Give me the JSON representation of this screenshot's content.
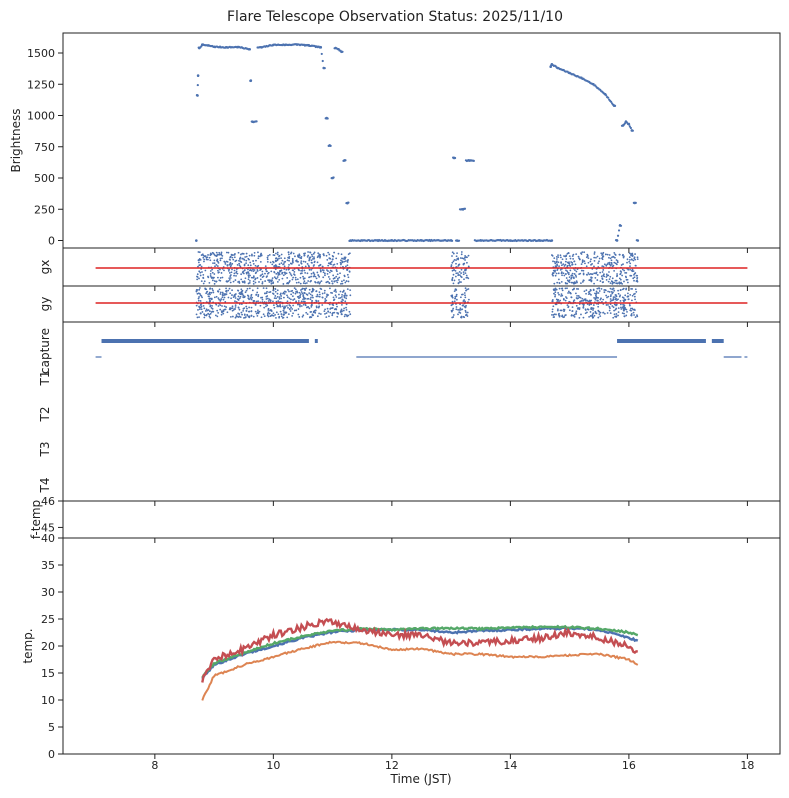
{
  "figure": {
    "title": "Flare Telescope Observation Status: 2025/11/10",
    "xlabel": "Time (JST)"
  },
  "colors": {
    "blue": "#4c72b0",
    "red": "#dd2222",
    "orange": "#dd8452",
    "green": "#55a868",
    "temp_red": "#c44e52",
    "axis": "#222222"
  },
  "chart_data": [
    {
      "id": "brightness",
      "type": "scatter",
      "ylabel": "Brightness",
      "xlim": [
        6.45,
        18.55
      ],
      "ylim": [
        -60,
        1660
      ],
      "yticks": [
        0,
        250,
        500,
        750,
        1000,
        1250,
        1500
      ],
      "series": [
        {
          "points": [
            [
              8.7,
              0
            ],
            [
              8.72,
              1160
            ],
            [
              8.73,
              1320
            ],
            [
              8.75,
              1540
            ],
            [
              8.8,
              1565
            ],
            [
              8.9,
              1560
            ],
            [
              9.0,
              1550
            ],
            [
              9.2,
              1545
            ],
            [
              9.4,
              1548
            ],
            [
              9.6,
              1530
            ],
            [
              9.62,
              1280
            ],
            [
              9.65,
              950
            ],
            [
              9.8,
              1545
            ],
            [
              10.0,
              1565
            ],
            [
              10.2,
              1565
            ],
            [
              10.4,
              1568
            ],
            [
              10.6,
              1560
            ],
            [
              10.8,
              1545
            ],
            [
              10.85,
              1380
            ],
            [
              10.9,
              980
            ],
            [
              10.95,
              760
            ],
            [
              11.0,
              500
            ],
            [
              11.05,
              1540
            ],
            [
              11.1,
              1530
            ],
            [
              11.15,
              1510
            ],
            [
              11.2,
              640
            ],
            [
              11.25,
              300
            ],
            [
              11.3,
              0
            ],
            [
              11.5,
              0
            ],
            [
              12.0,
              0
            ],
            [
              12.5,
              0
            ],
            [
              13.0,
              0
            ],
            [
              13.05,
              660
            ],
            [
              13.1,
              0
            ],
            [
              13.2,
              250
            ],
            [
              13.3,
              640
            ],
            [
              13.5,
              0
            ],
            [
              14.0,
              0
            ],
            [
              14.5,
              0
            ],
            [
              14.7,
              0
            ],
            [
              14.68,
              1390
            ],
            [
              14.7,
              1410
            ],
            [
              14.8,
              1380
            ],
            [
              15.0,
              1340
            ],
            [
              15.2,
              1300
            ],
            [
              15.4,
              1250
            ],
            [
              15.6,
              1170
            ],
            [
              15.75,
              1080
            ],
            [
              15.8,
              0
            ],
            [
              15.85,
              120
            ],
            [
              15.9,
              920
            ],
            [
              15.95,
              950
            ],
            [
              16.0,
              930
            ],
            [
              16.05,
              880
            ],
            [
              16.1,
              300
            ],
            [
              16.15,
              0
            ]
          ]
        }
      ]
    },
    {
      "id": "gx",
      "type": "scatter",
      "ylabel": "gx",
      "xlim": [
        6.45,
        18.55
      ],
      "series": [
        {
          "kind": "reference",
          "x_range": [
            7.0,
            18.0
          ],
          "level": 0
        },
        {
          "kind": "noise",
          "segments": [
            [
              8.7,
              11.3
            ],
            [
              13.0,
              13.3
            ],
            [
              14.7,
              16.15
            ]
          ]
        }
      ]
    },
    {
      "id": "gy",
      "type": "scatter",
      "ylabel": "gy",
      "xlim": [
        6.45,
        18.55
      ],
      "series": [
        {
          "kind": "reference",
          "x_range": [
            7.0,
            18.0
          ],
          "level": 0
        },
        {
          "kind": "noise",
          "segments": [
            [
              8.7,
              11.3
            ],
            [
              13.0,
              13.3
            ],
            [
              14.7,
              16.15
            ]
          ]
        }
      ]
    },
    {
      "id": "status",
      "type": "scatter",
      "xlim": [
        6.45,
        18.55
      ],
      "row_labels": [
        "capture",
        "T1",
        "T2",
        "T3",
        "T4"
      ],
      "series": [
        {
          "row": "capture",
          "segments": [
            [
              7.1,
              10.6
            ],
            [
              10.7,
              10.75
            ],
            [
              15.8,
              17.3
            ],
            [
              17.4,
              17.6
            ]
          ]
        },
        {
          "row": "capture-low",
          "segments": [
            [
              7.0,
              7.1
            ],
            [
              11.4,
              15.8
            ],
            [
              17.6,
              17.9
            ],
            [
              17.95,
              18.0
            ]
          ]
        }
      ]
    },
    {
      "id": "f-temp",
      "type": "scatter",
      "ylabel": "f-temp",
      "xlim": [
        6.45,
        18.55
      ],
      "ylim": [
        44.6,
        46
      ],
      "yticks": [
        45,
        46
      ],
      "series": []
    },
    {
      "id": "temp",
      "type": "line",
      "ylabel": "temp.",
      "xlim": [
        6.45,
        18.55
      ],
      "ylim": [
        0,
        40
      ],
      "yticks": [
        0,
        5,
        10,
        15,
        20,
        25,
        30,
        35,
        40
      ],
      "xticks": [
        8,
        10,
        12,
        14,
        16,
        18
      ],
      "series": [
        {
          "color_key": "blue",
          "x": [
            8.8,
            9.0,
            9.5,
            10.0,
            10.5,
            11.0,
            11.5,
            12.0,
            12.5,
            13.0,
            13.5,
            14.0,
            14.5,
            15.0,
            15.5,
            16.0,
            16.15
          ],
          "values": [
            14.0,
            16.5,
            18.5,
            20.0,
            21.5,
            22.6,
            23.0,
            23.0,
            23.0,
            22.5,
            22.8,
            23.0,
            23.2,
            23.3,
            23.0,
            21.5,
            21.0
          ]
        },
        {
          "color_key": "green",
          "x": [
            8.8,
            9.0,
            9.5,
            10.0,
            10.5,
            11.0,
            11.5,
            12.0,
            12.5,
            13.0,
            13.5,
            14.0,
            14.5,
            15.0,
            15.5,
            16.0,
            16.15
          ],
          "values": [
            14.2,
            16.8,
            18.7,
            20.5,
            21.8,
            22.8,
            23.2,
            23.0,
            23.2,
            23.3,
            23.2,
            23.4,
            23.5,
            23.5,
            23.2,
            22.5,
            22.0
          ]
        },
        {
          "color_key": "orange",
          "x": [
            8.8,
            9.0,
            9.5,
            10.0,
            10.5,
            11.0,
            11.5,
            12.0,
            12.5,
            13.0,
            13.5,
            14.0,
            14.5,
            15.0,
            15.5,
            16.0,
            16.15
          ],
          "values": [
            10.0,
            14.5,
            16.5,
            18.0,
            19.5,
            20.8,
            20.5,
            19.3,
            19.5,
            18.5,
            18.5,
            18.0,
            18.0,
            18.3,
            18.5,
            17.5,
            16.5
          ]
        },
        {
          "color_key": "temp_red",
          "x": [
            8.8,
            9.0,
            9.5,
            10.0,
            10.5,
            10.9,
            11.2,
            11.5,
            12.0,
            12.5,
            13.0,
            13.5,
            14.0,
            14.5,
            15.0,
            15.5,
            16.0,
            16.15
          ],
          "values": [
            13.5,
            17.5,
            19.5,
            22.0,
            23.5,
            24.8,
            24.0,
            23.0,
            22.0,
            22.0,
            20.5,
            20.5,
            21.0,
            21.5,
            22.5,
            21.5,
            20.0,
            19.0
          ]
        }
      ]
    }
  ]
}
